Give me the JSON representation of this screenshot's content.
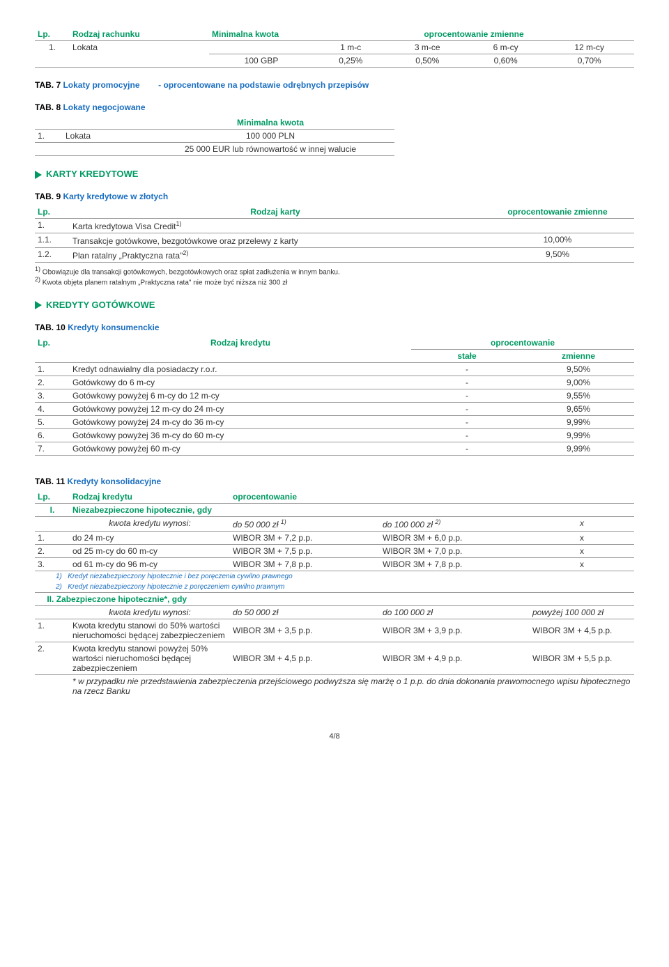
{
  "t1": {
    "h": [
      "Lp.",
      "Rodzaj rachunku",
      "Minimalna kwota",
      "oprocentowanie zmienne"
    ],
    "sub": [
      "1 m-c",
      "3 m-ce",
      "6 m-cy",
      "12 m-cy"
    ],
    "row": [
      "1.",
      "Lokata",
      "100 GBP",
      "0,25%",
      "0,50%",
      "0,60%",
      "0,70%"
    ]
  },
  "tab7": {
    "pre": "TAB. 7",
    "title": "Lokaty promocyjne",
    "note": "- oprocentowane na podstawie odrębnych przepisów"
  },
  "tab8": {
    "pre": "TAB. 8",
    "title": "Lokaty negocjowane"
  },
  "t8": {
    "h": "Minimalna kwota",
    "r1": [
      "1.",
      "Lokata",
      "100 000 PLN"
    ],
    "r2": "25 000 EUR lub równowartość w innej walucie"
  },
  "sec1": "KARTY KREDYTOWE",
  "tab9": {
    "pre": "TAB. 9",
    "title": "Karty kredytowe w złotych"
  },
  "t9": {
    "h": [
      "Lp.",
      "Rodzaj karty",
      "oprocentowanie zmienne"
    ],
    "rows": [
      [
        "1.",
        "Karta kredytowa Visa Credit",
        "1)",
        ""
      ],
      [
        "1.1.",
        "Transakcje gotówkowe, bezgotówkowe oraz przelewy z karty",
        "",
        "10,00%"
      ],
      [
        "1.2.",
        "Plan ratalny „Praktyczna rata\"",
        "2)",
        "9,50%"
      ]
    ],
    "notes": [
      "Obowiązuje dla transakcji gotówkowych, bezgotówkowych oraz spłat zadłużenia w innym banku.",
      "Kwota objęta planem ratalnym „Praktyczna rata\" nie może być niższa niż 300 zł"
    ]
  },
  "sec2": "KREDYTY GOTÓWKOWE",
  "tab10": {
    "pre": "TAB. 10",
    "title": "Kredyty konsumenckie"
  },
  "t10": {
    "h1": [
      "Lp.",
      "Rodzaj kredytu",
      "oprocentowanie"
    ],
    "h2": [
      "stałe",
      "zmienne"
    ],
    "rows": [
      [
        "1.",
        "Kredyt odnawialny dla posiadaczy r.o.r.",
        "-",
        "9,50%"
      ],
      [
        "2.",
        "Gotówkowy do 6 m-cy",
        "-",
        "9,00%"
      ],
      [
        "3.",
        "Gotówkowy powyżej 6 m-cy do 12 m-cy",
        "-",
        "9,55%"
      ],
      [
        "4.",
        "Gotówkowy powyżej 12 m-cy do 24 m-cy",
        "-",
        "9,65%"
      ],
      [
        "5.",
        "Gotówkowy powyżej 24 m-cy do 36 m-cy",
        "-",
        "9,99%"
      ],
      [
        "6.",
        "Gotówkowy powyżej 36 m-cy do 60 m-cy",
        "-",
        "9,99%"
      ],
      [
        "7.",
        "Gotówkowy powyżej 60 m-cy",
        "-",
        "9,99%"
      ]
    ]
  },
  "tab11": {
    "pre": "TAB. 11",
    "title": "Kredyty konsolidacyjne"
  },
  "t11": {
    "h": [
      "Lp.",
      "Rodzaj kredytu",
      "oprocentowanie"
    ],
    "s1": {
      "num": "I.",
      "title": "Niezabezpieczone hipotecznie, gdy"
    },
    "s1sub": [
      "kwota kredytu wynosi:",
      "do 50 000 zł ",
      "1)",
      "do 100 000 zł ",
      "2)",
      "x"
    ],
    "s1rows": [
      [
        "1.",
        "do 24 m-cy",
        "WIBOR 3M + 7,2 p.p.",
        "WIBOR 3M + 6,0 p.p.",
        "x"
      ],
      [
        "2.",
        "od 25 m-cy do 60 m-cy",
        "WIBOR 3M + 7,5 p.p.",
        "WIBOR 3M + 7,0 p.p.",
        "x"
      ],
      [
        "3.",
        "od 61 m-cy do 96 m-cy",
        "WIBOR 3M + 7,8 p.p.",
        "WIBOR 3M + 7,8 p.p.",
        "x"
      ]
    ],
    "s1notes": [
      "Kredyt niezabezpieczony hipotecznie i bez poręczenia cywilno prawnego",
      "Kredyt niezabezpieczony hipotecznie z poręczeniem cywilno prawnym"
    ],
    "s2": {
      "num": "II.",
      "title": "Zabezpieczone hipotecznie*, gdy"
    },
    "s2sub": [
      "kwota kredytu wynosi:",
      "do 50 000 zł",
      "do 100 000 zł",
      "powyżej 100 000 zł"
    ],
    "s2rows": [
      [
        "1.",
        "Kwota kredytu stanowi do 50% wartości nieruchomości będącej zabezpieczeniem",
        "WIBOR 3M + 3,5 p.p.",
        "WIBOR 3M + 3,9 p.p.",
        "WIBOR 3M + 4,5 p.p."
      ],
      [
        "2.",
        "Kwota kredytu stanowi powyżej 50% wartości nieruchomości będącej zabezpieczeniem",
        "WIBOR 3M + 4,5 p.p.",
        "WIBOR 3M + 4,9 p.p.",
        "WIBOR 3M + 5,5 p.p."
      ]
    ],
    "foot": "* w przypadku nie przedstawienia zabezpieczenia przejściowego podwyższa się marżę o 1 p.p. do dnia dokonania prawomocnego wpisu hipotecznego na rzecz Banku"
  },
  "page": "4/8"
}
